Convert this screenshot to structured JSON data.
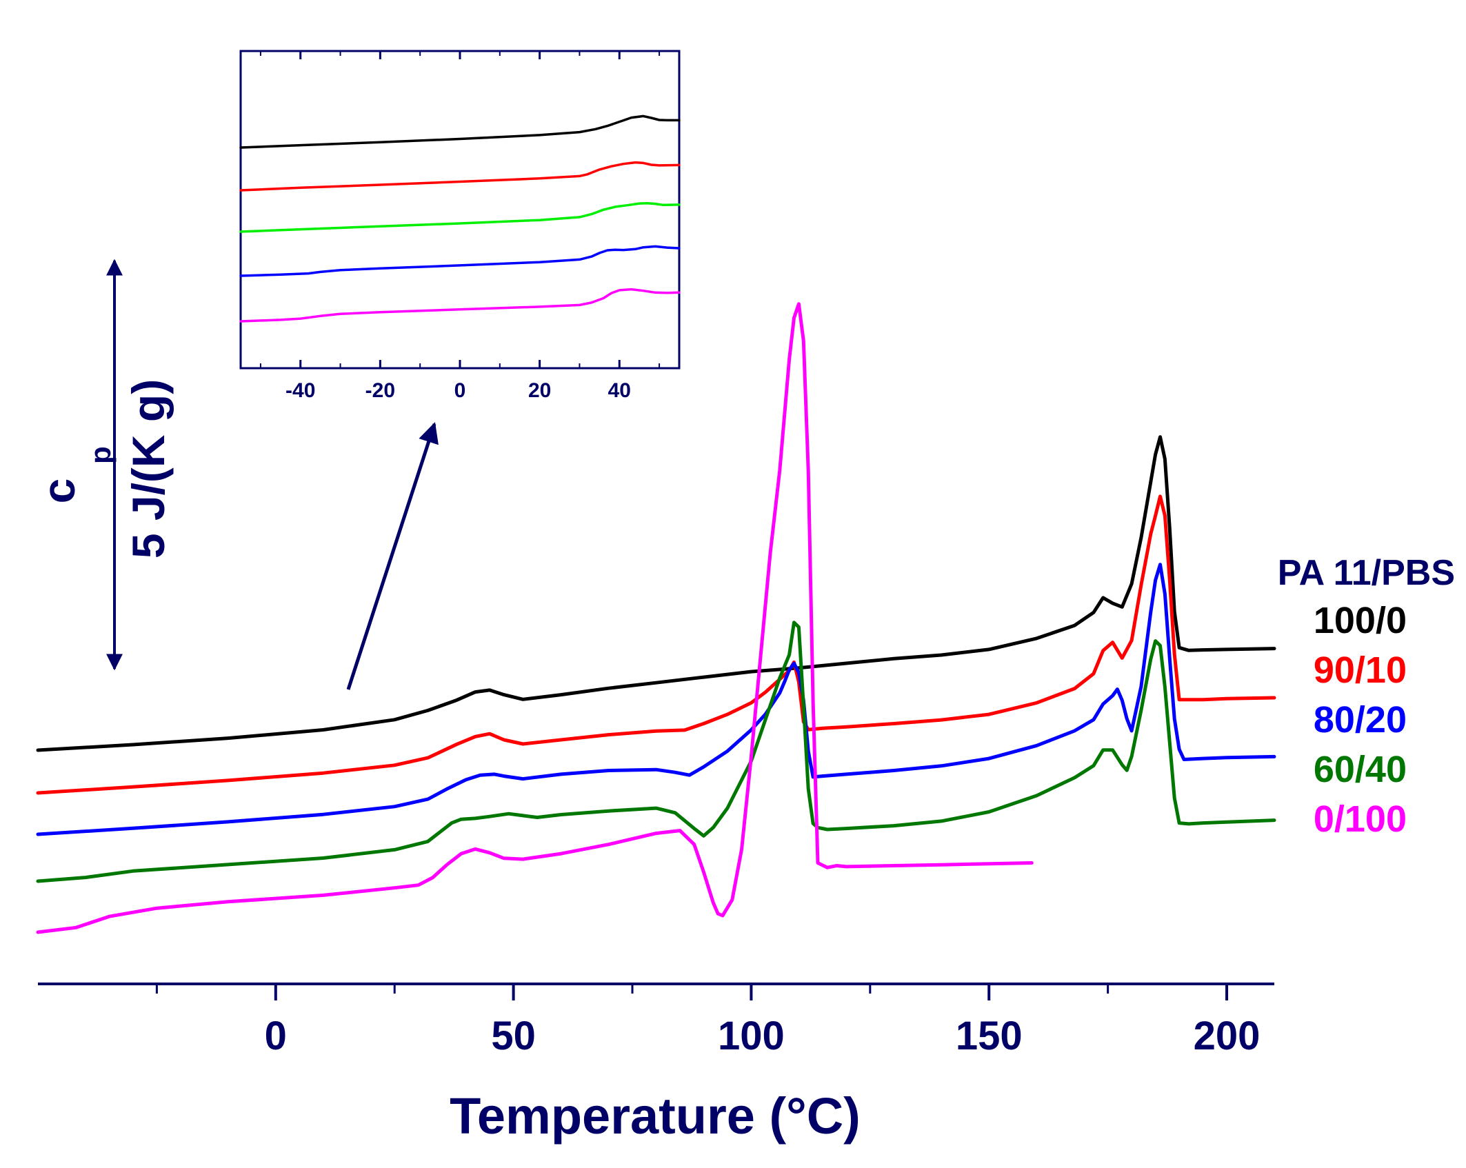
{
  "chart_data": {
    "type": "line",
    "title": "",
    "xlabel": "Temperature (°C)",
    "ylabel": "c_p",
    "xlim": [
      -50,
      210
    ],
    "x_ticks": [
      0,
      50,
      100,
      150,
      200
    ],
    "x_tick_labels": [
      "0",
      "50",
      "100",
      "150",
      "200"
    ],
    "x_minor_ticks": [
      -25,
      25,
      75,
      125,
      175
    ],
    "scale_bar": {
      "label_main": "c",
      "label_sub": "p",
      "label_value": "5 J/(K g)"
    },
    "legend": {
      "title": "PA 11/PBS",
      "placement": "right",
      "entries": [
        {
          "label": "100/0",
          "color": "#000000"
        },
        {
          "label": "90/10",
          "color": "#ff0000"
        },
        {
          "label": "80/20",
          "color": "#0000ff"
        },
        {
          "label": "60/40",
          "color": "#007700"
        },
        {
          "label": "0/100",
          "color": "#ff00ff"
        }
      ]
    },
    "y_unit_note": "curves vertically offset; values in J/(K g), scale bar = 5",
    "series": [
      {
        "name": "100/0",
        "color": "#000000",
        "x": [
          -50,
          -30,
          -10,
          10,
          25,
          32,
          38,
          42,
          45,
          48,
          52,
          60,
          70,
          80,
          90,
          100,
          110,
          120,
          130,
          140,
          150,
          160,
          168,
          172,
          174,
          176,
          178,
          180,
          182,
          184,
          185,
          186,
          187,
          188,
          189,
          190,
          192,
          195,
          200,
          210
        ],
        "y": [
          0,
          1.2,
          2.6,
          4.4,
          6.6,
          8.6,
          10.8,
          12.6,
          13.0,
          12.0,
          11.0,
          12.0,
          13.4,
          14.6,
          15.8,
          17.0,
          17.8,
          18.8,
          19.8,
          20.6,
          21.8,
          24.2,
          27.0,
          29.8,
          33.0,
          31.8,
          31.0,
          36.0,
          46.0,
          58.0,
          64.0,
          67.8,
          63.0,
          48.0,
          30.0,
          22.2,
          21.6,
          21.7,
          21.8,
          22.0
        ]
      },
      {
        "name": "90/10",
        "color": "#ff0000",
        "x": [
          -50,
          -30,
          -10,
          10,
          25,
          32,
          38,
          42,
          45,
          48,
          52,
          60,
          70,
          80,
          86,
          90,
          95,
          100,
          103,
          106,
          108,
          109,
          110,
          111,
          112,
          115,
          120,
          130,
          140,
          150,
          160,
          168,
          172,
          174,
          176,
          178,
          180,
          182,
          184,
          185,
          186,
          187,
          188,
          189,
          190,
          195,
          200,
          210
        ],
        "y": [
          0,
          1.3,
          2.7,
          4.3,
          6.0,
          7.6,
          10.5,
          12.2,
          12.8,
          11.5,
          10.6,
          11.5,
          12.6,
          13.4,
          13.6,
          15.0,
          17.0,
          19.5,
          21.8,
          24.6,
          26.5,
          28.3,
          24.0,
          15.4,
          13.7,
          14.0,
          14.3,
          15.0,
          15.8,
          17.0,
          19.5,
          22.6,
          25.8,
          30.8,
          32.6,
          29.2,
          33.0,
          45.0,
          56.0,
          60.0,
          64.2,
          60.0,
          46.0,
          30.0,
          20.2,
          20.2,
          20.4,
          20.6
        ]
      },
      {
        "name": "80/20",
        "color": "#0000ff",
        "x": [
          -50,
          -30,
          -10,
          10,
          25,
          32,
          36,
          40,
          43,
          46,
          48,
          52,
          60,
          70,
          80,
          84,
          87,
          90,
          95,
          100,
          103,
          106,
          107,
          108,
          109,
          110,
          111,
          112,
          113,
          115,
          120,
          130,
          140,
          150,
          160,
          168,
          172,
          174,
          176,
          177,
          178,
          179,
          180,
          182,
          184,
          185,
          186,
          187,
          188,
          189,
          190,
          191,
          195,
          200,
          210
        ],
        "y": [
          0,
          1.3,
          2.7,
          4.3,
          6.0,
          7.6,
          9.8,
          11.8,
          12.8,
          13.0,
          12.6,
          12.0,
          13.0,
          13.8,
          14.0,
          13.4,
          12.8,
          14.6,
          18.0,
          22.6,
          26.0,
          30.6,
          33.0,
          35.6,
          37.0,
          35.0,
          29.0,
          18.0,
          12.4,
          12.6,
          13.0,
          13.8,
          14.8,
          16.4,
          19.2,
          22.4,
          24.8,
          28.2,
          30.0,
          31.4,
          29.0,
          25.0,
          22.4,
          32.0,
          48.0,
          55.0,
          58.4,
          52.0,
          38.0,
          25.0,
          18.4,
          16.2,
          16.4,
          16.6,
          16.8
        ]
      },
      {
        "name": "60/40",
        "color": "#007700",
        "x": [
          -50,
          -40,
          -30,
          -10,
          10,
          25,
          32,
          35,
          37,
          39,
          42,
          45,
          49,
          52,
          55,
          60,
          70,
          80,
          84,
          88,
          90,
          92,
          95,
          100,
          103,
          106,
          108,
          109,
          110,
          111,
          112,
          113,
          114,
          116,
          120,
          130,
          140,
          150,
          160,
          168,
          172,
          174,
          176,
          178,
          179,
          180,
          182,
          184,
          185,
          186,
          187,
          188,
          189,
          190,
          192,
          195,
          200,
          210
        ],
        "y": [
          0,
          0.8,
          2.2,
          3.6,
          5.0,
          6.8,
          8.6,
          11.0,
          12.6,
          13.4,
          13.6,
          14.0,
          14.6,
          14.2,
          13.8,
          14.4,
          15.2,
          15.8,
          14.8,
          11.4,
          9.8,
          11.6,
          15.8,
          26.0,
          35.0,
          44.0,
          49.0,
          56.0,
          55.0,
          38.0,
          20.0,
          12.5,
          11.6,
          11.2,
          11.4,
          12.0,
          13.0,
          15.0,
          18.5,
          22.4,
          25.0,
          28.4,
          28.4,
          25.2,
          24.0,
          27.0,
          37.0,
          48.0,
          52.0,
          51.0,
          42.0,
          30.0,
          18.0,
          12.6,
          12.4,
          12.6,
          12.8,
          13.2
        ]
      },
      {
        "name": "0/100",
        "color": "#ff00ff",
        "x": [
          -50,
          -42,
          -35,
          -25,
          -10,
          10,
          25,
          30,
          33,
          36,
          39,
          42,
          45,
          48,
          52,
          60,
          70,
          80,
          85,
          88,
          90,
          92,
          93,
          94,
          96,
          98,
          100,
          102,
          104,
          106,
          107,
          108,
          109,
          110,
          111,
          112,
          113,
          114,
          116,
          118,
          120,
          130,
          140,
          150,
          159
        ],
        "y": [
          0,
          1.0,
          3.4,
          5.2,
          6.6,
          8.0,
          9.6,
          10.2,
          11.8,
          14.6,
          17.0,
          18.0,
          17.2,
          16.0,
          15.8,
          17.0,
          19.0,
          21.4,
          22.0,
          19.0,
          13.0,
          6.4,
          4.0,
          3.6,
          7.0,
          18.0,
          38.0,
          60.0,
          82.0,
          100.0,
          112.0,
          124.0,
          133.0,
          136.0,
          128.0,
          100.0,
          50.0,
          15.0,
          14.0,
          14.4,
          14.2,
          14.4,
          14.6,
          14.8,
          15.0
        ]
      }
    ],
    "inset": {
      "xlim": [
        -55,
        55
      ],
      "x_ticks": [
        -40,
        -20,
        0,
        20,
        40
      ],
      "x_tick_labels": [
        "-40",
        "-20",
        "0",
        "20",
        "40"
      ],
      "x_minor_ticks": [
        -50,
        -30,
        -10,
        10,
        30,
        50
      ],
      "series": [
        {
          "name": "100/0",
          "color": "#000000",
          "x": [
            -55,
            -40,
            -20,
            0,
            20,
            30,
            34,
            37,
            40,
            43,
            46,
            48,
            50,
            52,
            55
          ],
          "y": [
            0,
            1.6,
            3.6,
            5.8,
            8.4,
            10.4,
            12.4,
            14.6,
            17.4,
            20.2,
            21.2,
            20.0,
            18.6,
            18.4,
            18.4
          ]
        },
        {
          "name": "90/10",
          "color": "#ff0000",
          "x": [
            -55,
            -40,
            -20,
            0,
            20,
            30,
            32,
            35,
            38,
            41,
            44,
            46,
            48,
            50,
            55
          ],
          "y": [
            0,
            1.7,
            3.7,
            5.8,
            8.0,
            9.6,
            10.8,
            14.0,
            16.2,
            17.8,
            18.8,
            18.4,
            17.2,
            16.8,
            17.0
          ]
        },
        {
          "name": "80/20",
          "color": "#00ee00",
          "x": [
            -55,
            -40,
            -20,
            0,
            20,
            30,
            33,
            36,
            39,
            42,
            45,
            47,
            49,
            51,
            55
          ],
          "y": [
            0,
            1.6,
            3.6,
            5.6,
            7.8,
            9.8,
            11.8,
            14.8,
            16.8,
            17.8,
            19.0,
            19.2,
            18.8,
            18.0,
            18.2
          ]
        },
        {
          "name": "60/40",
          "color": "#0000ff",
          "x": [
            -55,
            -45,
            -38,
            -35,
            -30,
            -20,
            0,
            20,
            30,
            33,
            35,
            37,
            39,
            41,
            44,
            46,
            49,
            52,
            55
          ],
          "y": [
            0,
            0.8,
            1.6,
            2.6,
            3.8,
            5.0,
            7.0,
            9.2,
            11.0,
            13.0,
            15.4,
            17.2,
            17.6,
            17.4,
            18.0,
            19.2,
            19.8,
            19.0,
            18.6
          ]
        },
        {
          "name": "0/100",
          "color": "#ff00ff",
          "x": [
            -55,
            -45,
            -40,
            -35,
            -30,
            -20,
            0,
            20,
            30,
            33,
            36,
            38,
            40,
            43,
            46,
            49,
            52,
            55
          ],
          "y": [
            0,
            1.0,
            1.8,
            3.6,
            5.0,
            6.2,
            8.0,
            9.8,
            11.0,
            12.6,
            15.6,
            19.0,
            21.0,
            21.6,
            20.6,
            19.4,
            19.2,
            19.4
          ]
        }
      ]
    }
  }
}
